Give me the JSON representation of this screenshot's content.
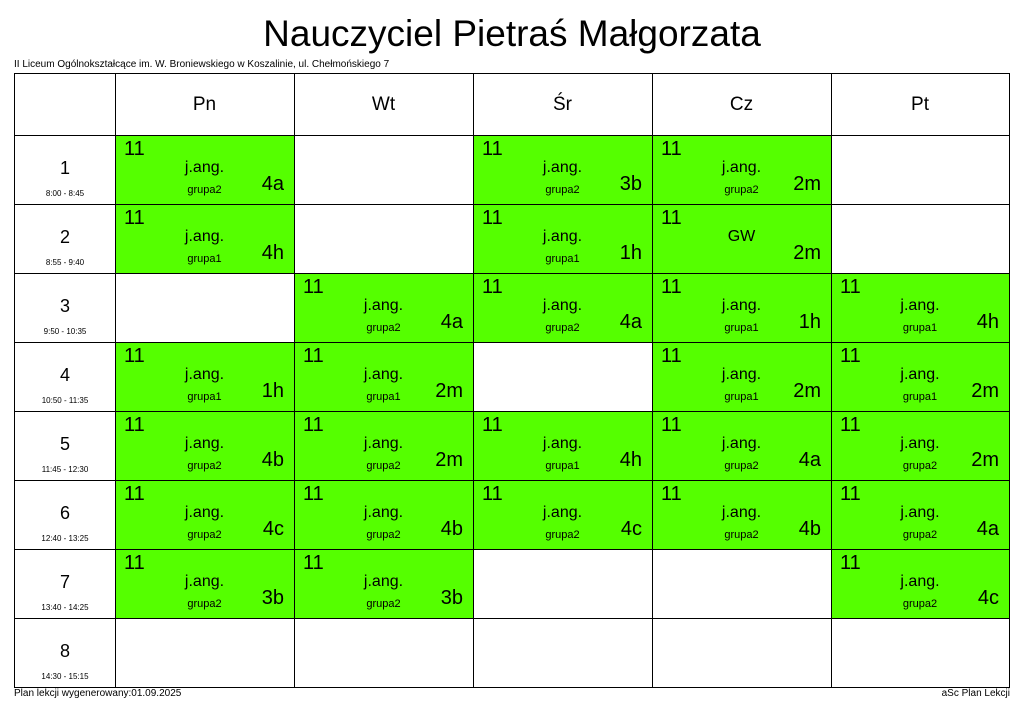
{
  "title": "Nauczyciel Pietraś Małgorzata",
  "school": "II Liceum Ogólnokształcące im. W. Broniewskiego w Koszalinie, ul. Chełmońskiego 7",
  "days": [
    "Pn",
    "Wt",
    "Śr",
    "Cz",
    "Pt"
  ],
  "periods": [
    {
      "num": "1",
      "time": "8:00 - 8:45"
    },
    {
      "num": "2",
      "time": "8:55 - 9:40"
    },
    {
      "num": "3",
      "time": "9:50 - 10:35"
    },
    {
      "num": "4",
      "time": "10:50 - 11:35"
    },
    {
      "num": "5",
      "time": "11:45 - 12:30"
    },
    {
      "num": "6",
      "time": "12:40 - 13:25"
    },
    {
      "num": "7",
      "time": "13:40 - 14:25"
    },
    {
      "num": "8",
      "time": "14:30 - 15:15"
    }
  ],
  "lessons": [
    {
      "period": 0,
      "day": 0,
      "room": "11",
      "subject": "j.ang.",
      "group": "grupa2",
      "cls": "4a"
    },
    {
      "period": 0,
      "day": 2,
      "room": "11",
      "subject": "j.ang.",
      "group": "grupa2",
      "cls": "3b"
    },
    {
      "period": 0,
      "day": 3,
      "room": "11",
      "subject": "j.ang.",
      "group": "grupa2",
      "cls": "2m"
    },
    {
      "period": 1,
      "day": 0,
      "room": "11",
      "subject": "j.ang.",
      "group": "grupa1",
      "cls": "4h"
    },
    {
      "period": 1,
      "day": 2,
      "room": "11",
      "subject": "j.ang.",
      "group": "grupa1",
      "cls": "1h"
    },
    {
      "period": 1,
      "day": 3,
      "room": "11",
      "subject": "GW",
      "group": "",
      "cls": "2m"
    },
    {
      "period": 2,
      "day": 1,
      "room": "11",
      "subject": "j.ang.",
      "group": "grupa2",
      "cls": "4a"
    },
    {
      "period": 2,
      "day": 2,
      "room": "11",
      "subject": "j.ang.",
      "group": "grupa2",
      "cls": "4a"
    },
    {
      "period": 2,
      "day": 3,
      "room": "11",
      "subject": "j.ang.",
      "group": "grupa1",
      "cls": "1h"
    },
    {
      "period": 2,
      "day": 4,
      "room": "11",
      "subject": "j.ang.",
      "group": "grupa1",
      "cls": "4h"
    },
    {
      "period": 3,
      "day": 0,
      "room": "11",
      "subject": "j.ang.",
      "group": "grupa1",
      "cls": "1h"
    },
    {
      "period": 3,
      "day": 1,
      "room": "11",
      "subject": "j.ang.",
      "group": "grupa1",
      "cls": "2m"
    },
    {
      "period": 3,
      "day": 3,
      "room": "11",
      "subject": "j.ang.",
      "group": "grupa1",
      "cls": "2m"
    },
    {
      "period": 3,
      "day": 4,
      "room": "11",
      "subject": "j.ang.",
      "group": "grupa1",
      "cls": "2m"
    },
    {
      "period": 4,
      "day": 0,
      "room": "11",
      "subject": "j.ang.",
      "group": "grupa2",
      "cls": "4b"
    },
    {
      "period": 4,
      "day": 1,
      "room": "11",
      "subject": "j.ang.",
      "group": "grupa2",
      "cls": "2m"
    },
    {
      "period": 4,
      "day": 2,
      "room": "11",
      "subject": "j.ang.",
      "group": "grupa1",
      "cls": "4h"
    },
    {
      "period": 4,
      "day": 3,
      "room": "11",
      "subject": "j.ang.",
      "group": "grupa2",
      "cls": "4a"
    },
    {
      "period": 4,
      "day": 4,
      "room": "11",
      "subject": "j.ang.",
      "group": "grupa2",
      "cls": "2m"
    },
    {
      "period": 5,
      "day": 0,
      "room": "11",
      "subject": "j.ang.",
      "group": "grupa2",
      "cls": "4c"
    },
    {
      "period": 5,
      "day": 1,
      "room": "11",
      "subject": "j.ang.",
      "group": "grupa2",
      "cls": "4b"
    },
    {
      "period": 5,
      "day": 2,
      "room": "11",
      "subject": "j.ang.",
      "group": "grupa2",
      "cls": "4c"
    },
    {
      "period": 5,
      "day": 3,
      "room": "11",
      "subject": "j.ang.",
      "group": "grupa2",
      "cls": "4b"
    },
    {
      "period": 5,
      "day": 4,
      "room": "11",
      "subject": "j.ang.",
      "group": "grupa2",
      "cls": "4a"
    },
    {
      "period": 6,
      "day": 0,
      "room": "11",
      "subject": "j.ang.",
      "group": "grupa2",
      "cls": "3b"
    },
    {
      "period": 6,
      "day": 1,
      "room": "11",
      "subject": "j.ang.",
      "group": "grupa2",
      "cls": "3b"
    },
    {
      "period": 6,
      "day": 4,
      "room": "11",
      "subject": "j.ang.",
      "group": "grupa2",
      "cls": "4c"
    }
  ],
  "colors": {
    "lesson_bg": "#55ff00",
    "border": "#000000"
  },
  "footer": {
    "generated": "Plan lekcji wygenerowany:01.09.2025",
    "app": "aSc Plan Lekcji"
  }
}
